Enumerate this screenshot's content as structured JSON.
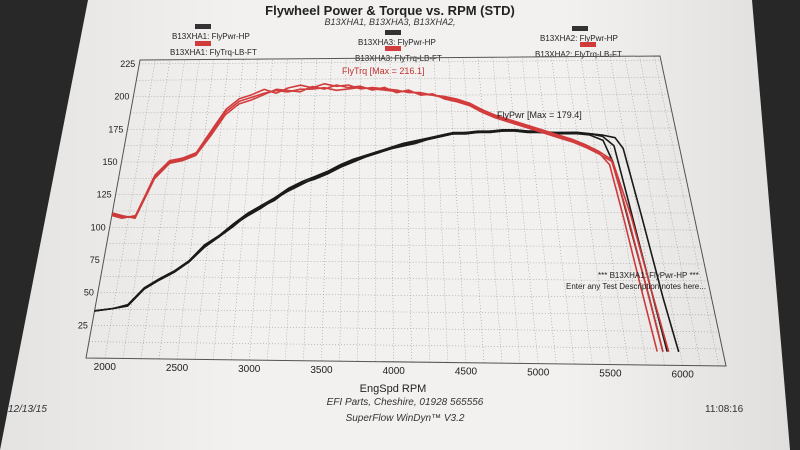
{
  "chart_data": {
    "type": "line",
    "title": "Flywheel Power & Torque vs. RPM (STD)",
    "subtitle": "B13XHA1, B13XHA3, B13XHA2,",
    "xlabel": "EngSpd RPM",
    "xlim": [
      1870,
      6300
    ],
    "ylim": [
      0,
      228
    ],
    "x_ticks": [
      2000,
      2500,
      3000,
      3500,
      4000,
      4500,
      5000,
      5500,
      6000
    ],
    "y_ticks": [
      25,
      50,
      75,
      100,
      125,
      150,
      175,
      200,
      225
    ],
    "grid": true,
    "legend": [
      {
        "label": "B13XHA1: FlyPwr-HP",
        "color": "#333333"
      },
      {
        "label": "B13XHA1: FlyTrq-LB-FT",
        "color": "#d23c3c"
      },
      {
        "label": "B13XHA3: FlyPwr-HP",
        "color": "#333333"
      },
      {
        "label": "B13XHA3: FlyTrq-LB-FT",
        "color": "#d23c3c"
      },
      {
        "label": "B13XHA2: FlyPwr-HP",
        "color": "#333333"
      },
      {
        "label": "B13XHA2: FlyTrq-LB-FT",
        "color": "#d23c3c"
      }
    ],
    "annotations": {
      "torque_max": "FlyTrq [Max = 216.1]",
      "power_max": "FlyPwr [Max = 179.4]",
      "note_title": "*** B13XHA1: FlyPwr-HP ***",
      "note_text": "Enter any Test Description notes here..."
    },
    "series": [
      {
        "name": "B13XHA1: FlyPwr-HP",
        "color": "#1a1a1a",
        "points": [
          [
            1870,
            36
          ],
          [
            2000,
            38
          ],
          [
            2100,
            40
          ],
          [
            2200,
            53
          ],
          [
            2300,
            60
          ],
          [
            2400,
            66
          ],
          [
            2500,
            74
          ],
          [
            2600,
            86
          ],
          [
            2700,
            93
          ],
          [
            2800,
            101
          ],
          [
            2900,
            110
          ],
          [
            3000,
            116
          ],
          [
            3100,
            121
          ],
          [
            3200,
            129
          ],
          [
            3300,
            134
          ],
          [
            3400,
            137
          ],
          [
            3500,
            141
          ],
          [
            3600,
            146
          ],
          [
            3700,
            150
          ],
          [
            3800,
            154
          ],
          [
            3900,
            157
          ],
          [
            4000,
            160
          ],
          [
            4100,
            162
          ],
          [
            4200,
            164
          ],
          [
            4300,
            167
          ],
          [
            4400,
            169
          ],
          [
            4500,
            171
          ],
          [
            4600,
            171
          ],
          [
            4700,
            172
          ],
          [
            4800,
            172
          ],
          [
            4900,
            173
          ],
          [
            5000,
            173
          ],
          [
            5100,
            172
          ],
          [
            5200,
            172
          ],
          [
            5300,
            171
          ],
          [
            5400,
            171
          ],
          [
            5500,
            171
          ],
          [
            5600,
            170
          ],
          [
            5700,
            166
          ],
          [
            5750,
            150
          ],
          [
            5800,
            100
          ],
          [
            5850,
            50
          ],
          [
            5880,
            10
          ]
        ]
      },
      {
        "name": "B13XHA3: FlyPwr-HP",
        "color": "#1a1a1a",
        "points": [
          [
            1870,
            36
          ],
          [
            2000,
            38
          ],
          [
            2100,
            41
          ],
          [
            2200,
            54
          ],
          [
            2300,
            61
          ],
          [
            2400,
            67
          ],
          [
            2500,
            75
          ],
          [
            2600,
            87
          ],
          [
            2700,
            94
          ],
          [
            2800,
            103
          ],
          [
            2900,
            111
          ],
          [
            3000,
            117
          ],
          [
            3100,
            123
          ],
          [
            3200,
            130
          ],
          [
            3300,
            135
          ],
          [
            3400,
            139
          ],
          [
            3500,
            143
          ],
          [
            3600,
            148
          ],
          [
            3700,
            152
          ],
          [
            3800,
            155
          ],
          [
            3900,
            158
          ],
          [
            4000,
            161
          ],
          [
            4100,
            164
          ],
          [
            4200,
            166
          ],
          [
            4300,
            168
          ],
          [
            4400,
            170
          ],
          [
            4500,
            172
          ],
          [
            4600,
            172
          ],
          [
            4700,
            173
          ],
          [
            4800,
            173
          ],
          [
            4900,
            174
          ],
          [
            5000,
            174
          ],
          [
            5100,
            173
          ],
          [
            5200,
            173
          ],
          [
            5300,
            172
          ],
          [
            5400,
            172
          ],
          [
            5500,
            172
          ],
          [
            5600,
            171
          ],
          [
            5700,
            169
          ],
          [
            5780,
            162
          ],
          [
            5820,
            120
          ],
          [
            5870,
            60
          ],
          [
            5910,
            10
          ]
        ]
      },
      {
        "name": "B13XHA2: FlyPwr-HP",
        "color": "#1a1a1a",
        "points": [
          [
            1870,
            36
          ],
          [
            2000,
            38
          ],
          [
            2100,
            40
          ],
          [
            2200,
            53
          ],
          [
            2300,
            60
          ],
          [
            2400,
            66
          ],
          [
            2500,
            74
          ],
          [
            2600,
            85
          ],
          [
            2700,
            93
          ],
          [
            2800,
            102
          ],
          [
            2900,
            109
          ],
          [
            3000,
            115
          ],
          [
            3100,
            122
          ],
          [
            3200,
            128
          ],
          [
            3300,
            133
          ],
          [
            3400,
            138
          ],
          [
            3500,
            142
          ],
          [
            3600,
            147
          ],
          [
            3700,
            151
          ],
          [
            3800,
            154
          ],
          [
            3900,
            157
          ],
          [
            4000,
            160
          ],
          [
            4100,
            163
          ],
          [
            4200,
            165
          ],
          [
            4300,
            167
          ],
          [
            4400,
            169
          ],
          [
            4500,
            171
          ],
          [
            4600,
            172
          ],
          [
            4700,
            172
          ],
          [
            4800,
            173
          ],
          [
            4900,
            173
          ],
          [
            5000,
            174
          ],
          [
            5100,
            173
          ],
          [
            5200,
            172
          ],
          [
            5300,
            172
          ],
          [
            5400,
            171
          ],
          [
            5500,
            171
          ],
          [
            5600,
            171
          ],
          [
            5700,
            170
          ],
          [
            5800,
            168
          ],
          [
            5850,
            160
          ],
          [
            5900,
            110
          ],
          [
            5950,
            50
          ],
          [
            5990,
            10
          ]
        ]
      },
      {
        "name": "B13XHA1: FlyTrq-LB-FT",
        "color": "#d23c3c",
        "points": [
          [
            1870,
            110
          ],
          [
            1950,
            108
          ],
          [
            2050,
            108
          ],
          [
            2150,
            138
          ],
          [
            2250,
            150
          ],
          [
            2350,
            152
          ],
          [
            2450,
            156
          ],
          [
            2550,
            172
          ],
          [
            2650,
            188
          ],
          [
            2750,
            196
          ],
          [
            2850,
            199
          ],
          [
            2950,
            202
          ],
          [
            3050,
            204
          ],
          [
            3150,
            203
          ],
          [
            3250,
            205
          ],
          [
            3350,
            205
          ],
          [
            3450,
            206
          ],
          [
            3550,
            204
          ],
          [
            3650,
            205
          ],
          [
            3750,
            206
          ],
          [
            3850,
            205
          ],
          [
            3950,
            204
          ],
          [
            4050,
            203
          ],
          [
            4150,
            203
          ],
          [
            4250,
            201
          ],
          [
            4350,
            200
          ],
          [
            4450,
            198
          ],
          [
            4550,
            196
          ],
          [
            4650,
            193
          ],
          [
            4750,
            188
          ],
          [
            4850,
            184
          ],
          [
            4950,
            181
          ],
          [
            5050,
            178
          ],
          [
            5150,
            175
          ],
          [
            5250,
            172
          ],
          [
            5350,
            169
          ],
          [
            5450,
            166
          ],
          [
            5550,
            162
          ],
          [
            5650,
            157
          ],
          [
            5720,
            148
          ],
          [
            5760,
            110
          ],
          [
            5800,
            60
          ],
          [
            5840,
            10
          ]
        ]
      },
      {
        "name": "B13XHA3: FlyTrq-LB-FT",
        "color": "#d23c3c",
        "points": [
          [
            1870,
            109
          ],
          [
            1950,
            107
          ],
          [
            2050,
            109
          ],
          [
            2150,
            140
          ],
          [
            2250,
            151
          ],
          [
            2350,
            153
          ],
          [
            2450,
            157
          ],
          [
            2550,
            174
          ],
          [
            2650,
            190
          ],
          [
            2750,
            198
          ],
          [
            2850,
            201
          ],
          [
            2950,
            205
          ],
          [
            3050,
            202
          ],
          [
            3150,
            206
          ],
          [
            3250,
            208
          ],
          [
            3350,
            206
          ],
          [
            3450,
            209
          ],
          [
            3550,
            207
          ],
          [
            3650,
            208
          ],
          [
            3750,
            205
          ],
          [
            3850,
            206
          ],
          [
            3950,
            205
          ],
          [
            4050,
            204
          ],
          [
            4150,
            202
          ],
          [
            4250,
            202
          ],
          [
            4350,
            200
          ],
          [
            4450,
            199
          ],
          [
            4550,
            197
          ],
          [
            4650,
            194
          ],
          [
            4750,
            189
          ],
          [
            4850,
            185
          ],
          [
            4950,
            182
          ],
          [
            5050,
            179
          ],
          [
            5150,
            176
          ],
          [
            5250,
            173
          ],
          [
            5350,
            170
          ],
          [
            5450,
            167
          ],
          [
            5550,
            163
          ],
          [
            5650,
            158
          ],
          [
            5740,
            152
          ],
          [
            5790,
            115
          ],
          [
            5840,
            60
          ],
          [
            5880,
            10
          ]
        ]
      },
      {
        "name": "B13XHA2: FlyTrq-LB-FT",
        "color": "#d23c3c",
        "points": [
          [
            1870,
            111
          ],
          [
            1950,
            109
          ],
          [
            2050,
            107
          ],
          [
            2150,
            137
          ],
          [
            2250,
            149
          ],
          [
            2350,
            151
          ],
          [
            2450,
            155
          ],
          [
            2550,
            170
          ],
          [
            2650,
            186
          ],
          [
            2750,
            194
          ],
          [
            2850,
            197
          ],
          [
            2950,
            201
          ],
          [
            3050,
            205
          ],
          [
            3150,
            204
          ],
          [
            3250,
            203
          ],
          [
            3350,
            207
          ],
          [
            3450,
            205
          ],
          [
            3550,
            208
          ],
          [
            3650,
            206
          ],
          [
            3750,
            207
          ],
          [
            3850,
            204
          ],
          [
            3950,
            206
          ],
          [
            4050,
            202
          ],
          [
            4150,
            204
          ],
          [
            4250,
            200
          ],
          [
            4350,
            201
          ],
          [
            4450,
            197
          ],
          [
            4550,
            195
          ],
          [
            4650,
            192
          ],
          [
            4750,
            187
          ],
          [
            4850,
            183
          ],
          [
            4950,
            180
          ],
          [
            5050,
            177
          ],
          [
            5150,
            174
          ],
          [
            5250,
            171
          ],
          [
            5350,
            168
          ],
          [
            5450,
            165
          ],
          [
            5550,
            161
          ],
          [
            5650,
            156
          ],
          [
            5750,
            150
          ],
          [
            5820,
            110
          ],
          [
            5870,
            60
          ],
          [
            5920,
            10
          ]
        ]
      }
    ]
  },
  "footer": {
    "date": "12/13/15",
    "company": "EFI Parts, Cheshire, 01928 565556",
    "software": "SuperFlow WinDyn™ V3.2",
    "time": "11:08:16"
  }
}
